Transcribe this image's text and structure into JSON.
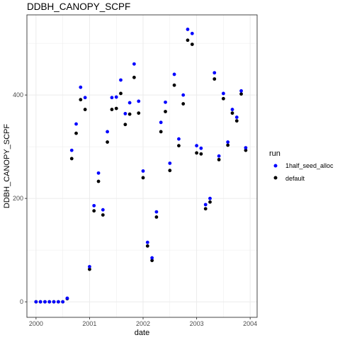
{
  "chart_data": {
    "type": "scatter",
    "title": "DDBH_CANOPY_SCPF",
    "xlabel": "date",
    "ylabel": "DDBH_CANOPY_SCPF",
    "xlim": [
      1999.83,
      2004.13
    ],
    "ylim": [
      -30,
      555
    ],
    "x_ticks": [
      2000,
      2001,
      2002,
      2003,
      2004
    ],
    "x_tick_labels": [
      "2000",
      "2001",
      "2002",
      "2003",
      "2004"
    ],
    "y_ticks": [
      0,
      200,
      400
    ],
    "y_tick_labels": [
      "0",
      "200",
      "400"
    ],
    "grid": true,
    "legend": {
      "title": "run",
      "position": "right"
    },
    "series": [
      {
        "name": "1half_seed_alloc",
        "color": "#0000ff",
        "x": [
          2000.0,
          2000.083,
          2000.167,
          2000.25,
          2000.333,
          2000.417,
          2000.5,
          2000.583,
          2000.667,
          2000.75,
          2000.833,
          2000.917,
          2001.0,
          2001.083,
          2001.167,
          2001.25,
          2001.333,
          2001.417,
          2001.5,
          2001.583,
          2001.667,
          2001.75,
          2001.833,
          2001.917,
          2002.0,
          2002.083,
          2002.167,
          2002.25,
          2002.333,
          2002.417,
          2002.5,
          2002.583,
          2002.667,
          2002.75,
          2002.833,
          2002.917,
          2003.0,
          2003.083,
          2003.167,
          2003.25,
          2003.333,
          2003.417,
          2003.5,
          2003.583,
          2003.667,
          2003.75,
          2003.833,
          2003.917
        ],
        "y": [
          0,
          0,
          0,
          0,
          0,
          0,
          0,
          7,
          293,
          344,
          415,
          395,
          68,
          186,
          249,
          178,
          329,
          395,
          396,
          429,
          364,
          385,
          460,
          388,
          253,
          115,
          85,
          174,
          347,
          386,
          268,
          440,
          315,
          400,
          527,
          519,
          302,
          297,
          188,
          200,
          443,
          282,
          403,
          309,
          372,
          357,
          408,
          298
        ]
      },
      {
        "name": "default",
        "color": "#000000",
        "x": [
          2000.0,
          2000.083,
          2000.167,
          2000.25,
          2000.333,
          2000.417,
          2000.5,
          2000.583,
          2000.667,
          2000.75,
          2000.833,
          2000.917,
          2001.0,
          2001.083,
          2001.167,
          2001.25,
          2001.333,
          2001.417,
          2001.5,
          2001.583,
          2001.667,
          2001.75,
          2001.833,
          2001.917,
          2002.0,
          2002.083,
          2002.167,
          2002.25,
          2002.333,
          2002.417,
          2002.5,
          2002.583,
          2002.667,
          2002.75,
          2002.833,
          2002.917,
          2003.0,
          2003.083,
          2003.167,
          2003.25,
          2003.333,
          2003.417,
          2003.5,
          2003.583,
          2003.667,
          2003.75,
          2003.833,
          2003.917
        ],
        "y": [
          0,
          0,
          0,
          0,
          0,
          0,
          0,
          6,
          277,
          326,
          391,
          372,
          63,
          176,
          233,
          168,
          309,
          372,
          374,
          403,
          343,
          363,
          434,
          365,
          240,
          108,
          80,
          164,
          329,
          368,
          254,
          419,
          302,
          383,
          506,
          498,
          288,
          286,
          180,
          193,
          431,
          275,
          393,
          303,
          365,
          350,
          402,
          293
        ]
      }
    ]
  }
}
